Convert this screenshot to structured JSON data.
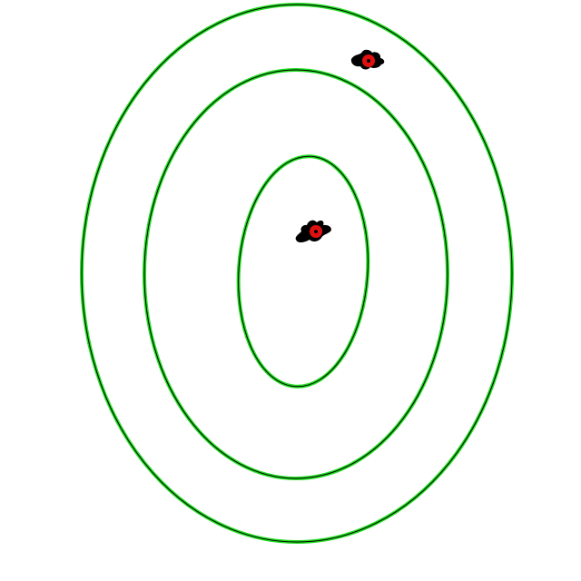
{
  "colors": {
    "background": "#ffffff",
    "ring_glow": "#22dd22",
    "ring_outline": "#000000",
    "marker_splat": "#000000",
    "marker_dot": "#e01010",
    "marker_center": "#000000"
  },
  "rings": [
    {
      "name": "outer-ring"
    },
    {
      "name": "middle-ring"
    },
    {
      "name": "inner-ring"
    }
  ],
  "markers": [
    {
      "name": "upper-right-marker"
    },
    {
      "name": "center-marker"
    }
  ]
}
